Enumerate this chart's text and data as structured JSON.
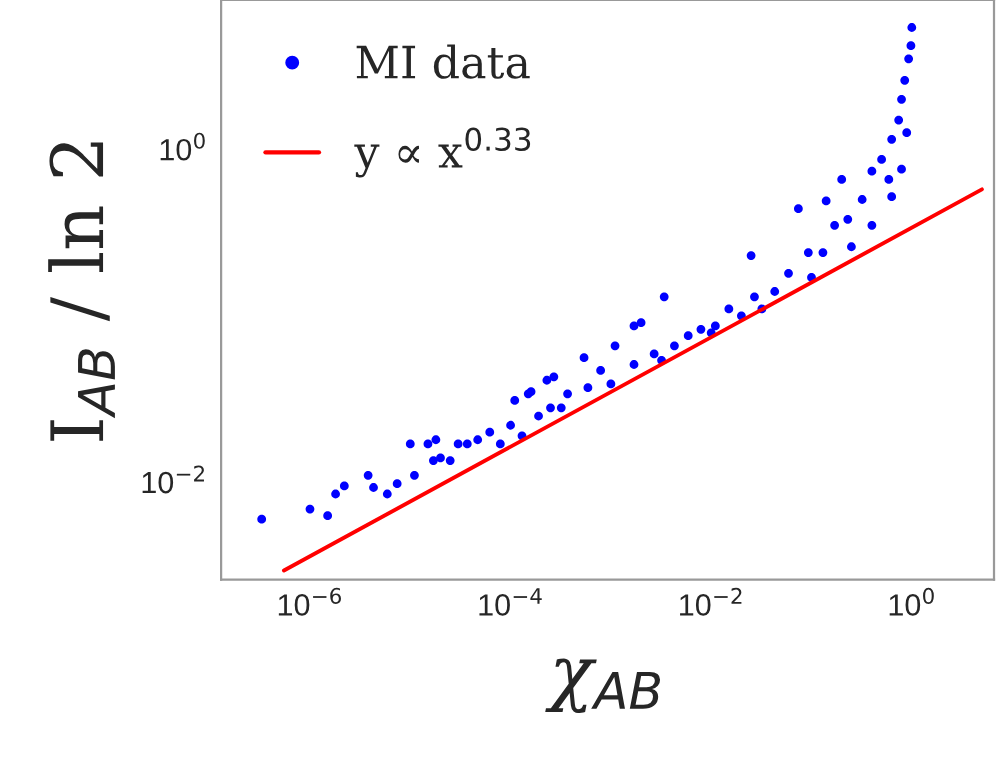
{
  "chart_data": {
    "type": "scatter",
    "xlabel": "χ$_{AB}$",
    "ylabel": "I$_{AB}$ / ln 2",
    "log": "xy",
    "grid": false,
    "legend": "top left",
    "xlim": [
      1.3e-07,
      6.6
    ],
    "ylim": [
      0.0026,
      7.9
    ],
    "xticks": [
      {
        "value": 1e-06,
        "label": "10$^{−6}$"
      },
      {
        "value": 0.0001,
        "label": "10$^{−4}$"
      },
      {
        "value": 0.01,
        "label": "10$^{−2}$"
      },
      {
        "value": 1,
        "label": "10$^{0}$"
      }
    ],
    "yticks": [
      {
        "value": 0.01,
        "label": "10$^{−2}$"
      },
      {
        "value": 1,
        "label": "10$^{0}$"
      }
    ],
    "series": [
      {
        "name": "MI data",
        "marker": "circle",
        "color": "#0000ff",
        "x": [
          3.3e-07,
          1e-06,
          1.5e-06,
          1.8e-06,
          2.2e-06,
          3.8e-06,
          4.3e-06,
          5.9e-06,
          7.4e-06,
          1e-05,
          1.1e-05,
          1.5e-05,
          1.8e-05,
          1.7e-05,
          2e-05,
          2.5e-05,
          3e-05,
          3.7e-05,
          4.7e-05,
          6.2e-05,
          7.9e-05,
          0.0001,
          0.00011,
          0.00015,
          0.00016,
          0.00013,
          0.00019,
          0.00023,
          0.00027,
          0.00025,
          0.00037,
          0.00054,
          0.00059,
          0.00079,
          0.001,
          0.0011,
          0.0017,
          0.002,
          0.0017,
          0.0027,
          0.0034,
          0.0043,
          0.0059,
          0.0079,
          0.011,
          0.015,
          0.02,
          0.025,
          0.027,
          0.043,
          0.059,
          0.074,
          0.093,
          0.13,
          0.14,
          0.17,
          0.2,
          0.23,
          0.32,
          0.4,
          0.5,
          0.59,
          0.63,
          0.74,
          0.79,
          0.85,
          0.93,
          0.98,
          1.0,
          0.00032,
          0.0032,
          0.01,
          0.032,
          0.1,
          0.25,
          0.4,
          0.63,
          0.79,
          0.89
        ],
        "values": [
          0.006,
          0.0069,
          0.0063,
          0.0085,
          0.0095,
          0.011,
          0.0093,
          0.0085,
          0.0098,
          0.017,
          0.011,
          0.017,
          0.018,
          0.0135,
          0.014,
          0.0135,
          0.017,
          0.017,
          0.018,
          0.02,
          0.017,
          0.022,
          0.031,
          0.034,
          0.035,
          0.019,
          0.025,
          0.041,
          0.043,
          0.028,
          0.034,
          0.056,
          0.037,
          0.047,
          0.039,
          0.066,
          0.087,
          0.091,
          0.051,
          0.059,
          0.13,
          0.066,
          0.076,
          0.083,
          0.087,
          0.11,
          0.1,
          0.23,
          0.13,
          0.14,
          0.18,
          0.44,
          0.24,
          0.24,
          0.49,
          0.35,
          0.66,
          0.38,
          0.5,
          0.74,
          0.87,
          0.66,
          1.15,
          1.5,
          2.0,
          2.6,
          3.5,
          4.2,
          5.4,
          0.028,
          0.054,
          0.079,
          0.11,
          0.17,
          0.26,
          0.35,
          0.52,
          0.76,
          1.26
        ]
      },
      {
        "name": "y ∝ x$^{0.33}$",
        "type": "line",
        "marker": "none",
        "color": "#ff0000",
        "line_style": "solid",
        "x": [
          5.5e-07,
          5.0
        ],
        "values": [
          0.00295,
          0.575
        ]
      }
    ]
  }
}
